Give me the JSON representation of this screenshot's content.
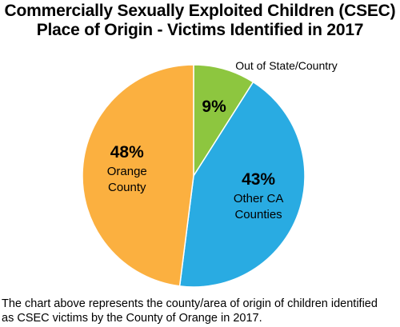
{
  "title": {
    "line1": "Commercially Sexually Exploited Children (CSEC)",
    "line2": "Place of Origin - Victims Identified in 2017"
  },
  "chart_data": {
    "type": "pie",
    "title": "Commercially Sexually Exploited Children (CSEC) Place of Origin - Victims Identified in 2017",
    "slices": [
      {
        "label": "Out of State/Country",
        "label_lines": [],
        "value": 9,
        "display": "9%",
        "color": "#8dc63f",
        "outside_label": "Out of State/Country"
      },
      {
        "label": "Other CA Counties",
        "label_lines": [
          "Other CA",
          "Counties"
        ],
        "value": 43,
        "display": "43%",
        "color": "#29abe2"
      },
      {
        "label": "Orange County",
        "label_lines": [
          "Orange",
          "County"
        ],
        "value": 48,
        "display": "48%",
        "color": "#fbb040"
      }
    ],
    "start_angle_deg": 0,
    "direction": "clockwise"
  },
  "caption": {
    "line1": "The chart above represents the county/area of origin of children identified",
    "line2": "as CSEC victims by the County of Orange in 2017."
  }
}
